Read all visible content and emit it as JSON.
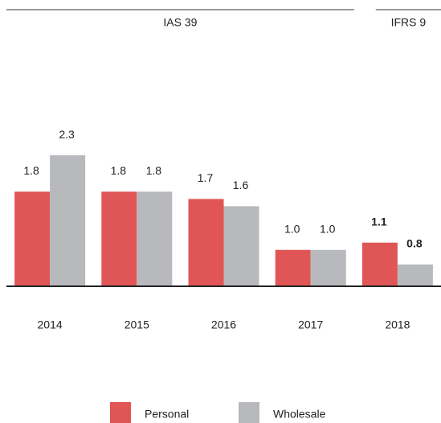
{
  "chart_data": {
    "type": "bar",
    "categories": [
      "2014",
      "2015",
      "2016",
      "2017",
      "2018"
    ],
    "periods": [
      {
        "label": "IAS 39",
        "count": 4,
        "bold": false
      },
      {
        "label": "IFRS 9",
        "count": 1,
        "bold": true
      }
    ],
    "series": [
      {
        "name": "Personal",
        "color": "#e05656",
        "values": [
          1.8,
          1.8,
          1.7,
          1.0,
          1.1
        ],
        "value_labels": [
          "1.8",
          "1.8",
          "1.7",
          "1.0",
          "1.1"
        ]
      },
      {
        "name": "Wholesale",
        "color": "#b8b9bc",
        "values": [
          2.3,
          1.8,
          1.6,
          1.0,
          0.8
        ],
        "value_labels": [
          "2.3",
          "1.8",
          "1.6",
          "1.0",
          "0.8"
        ]
      }
    ],
    "ylim": [
      0.5,
      2.5
    ]
  }
}
